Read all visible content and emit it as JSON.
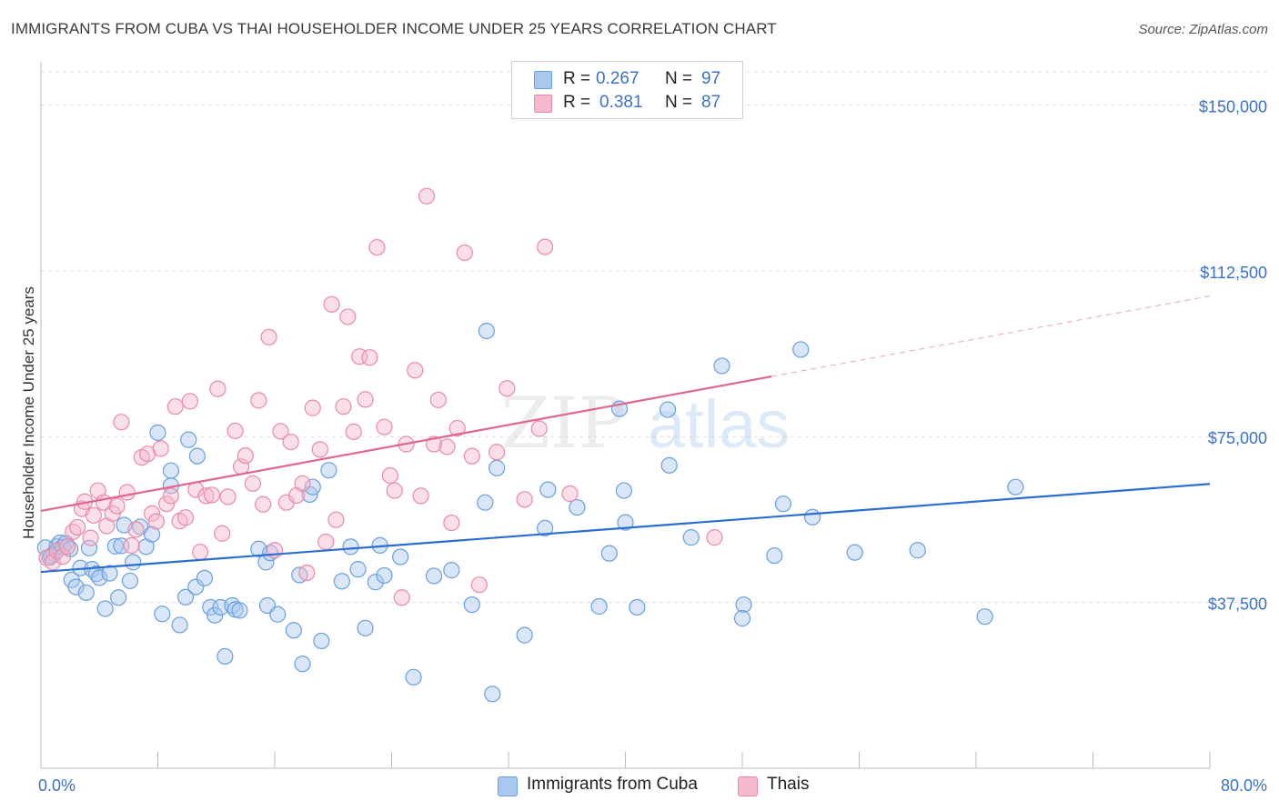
{
  "header": {
    "title": "IMMIGRANTS FROM CUBA VS THAI HOUSEHOLDER INCOME UNDER 25 YEARS CORRELATION CHART",
    "source": "Source: ZipAtlas.com"
  },
  "legend": {
    "rows": [
      {
        "r_label": "R =",
        "r_value": "0.267",
        "n_label": "N =",
        "n_value": "97"
      },
      {
        "r_label": "R =",
        "r_value": "0.381",
        "n_label": "N =",
        "n_value": "87"
      }
    ]
  },
  "bottom_legend": {
    "items": [
      {
        "label": "Immigrants from Cuba"
      },
      {
        "label": "Thais"
      }
    ]
  },
  "watermark": {
    "zip": "ZIP",
    "atlas": "atlas"
  },
  "colors": {
    "cuba_fill": "#a8c8f0",
    "cuba_stroke": "#6a9fdc",
    "cuba_line": "#2a6fd0",
    "thai_fill": "#f5b8cc",
    "thai_stroke": "#e88aa8",
    "thai_line": "#e0668e",
    "tick_text": "#3a72c4"
  },
  "chart_data": {
    "type": "scatter",
    "title": "IMMIGRANTS FROM CUBA VS THAI HOUSEHOLDER INCOME UNDER 25 YEARS CORRELATION CHART",
    "xlabel": "",
    "ylabel": "Householder Income Under 25 years",
    "xlim": [
      0,
      80
    ],
    "ylim": [
      0,
      157500
    ],
    "x_tick_labels": [
      "0.0%",
      "80.0%"
    ],
    "y_ticks": [
      37500,
      75000,
      112500,
      150000
    ],
    "y_tick_labels": [
      "$37,500",
      "$75,000",
      "$112,500",
      "$150,000"
    ],
    "grid": true,
    "legend_position": "top-center",
    "series": [
      {
        "name": "Immigrants from Cuba",
        "r": 0.267,
        "n": 97,
        "trend": {
          "x": [
            0,
            80
          ],
          "y": [
            44400,
            64300
          ]
        },
        "points": [
          [
            0.3,
            49900
          ],
          [
            0.6,
            47700
          ],
          [
            0.9,
            48500
          ],
          [
            1.1,
            50200
          ],
          [
            1.3,
            51000
          ],
          [
            1.5,
            50000
          ],
          [
            1.7,
            50900
          ],
          [
            2.0,
            49600
          ],
          [
            2.1,
            42600
          ],
          [
            2.4,
            41000
          ],
          [
            2.7,
            45300
          ],
          [
            3.1,
            39700
          ],
          [
            3.3,
            49800
          ],
          [
            3.5,
            45000
          ],
          [
            3.8,
            44000
          ],
          [
            4.0,
            43100
          ],
          [
            4.4,
            36100
          ],
          [
            4.7,
            44100
          ],
          [
            5.1,
            50200
          ],
          [
            5.3,
            38600
          ],
          [
            5.5,
            50300
          ],
          [
            5.7,
            55000
          ],
          [
            6.1,
            42400
          ],
          [
            6.3,
            46600
          ],
          [
            6.8,
            54600
          ],
          [
            7.2,
            50100
          ],
          [
            7.6,
            52900
          ],
          [
            8.0,
            75900
          ],
          [
            8.3,
            34900
          ],
          [
            8.9,
            63900
          ],
          [
            8.9,
            67300
          ],
          [
            9.5,
            32400
          ],
          [
            9.9,
            38700
          ],
          [
            10.1,
            74300
          ],
          [
            10.6,
            41000
          ],
          [
            10.7,
            70600
          ],
          [
            11.2,
            43000
          ],
          [
            11.6,
            36400
          ],
          [
            11.9,
            34600
          ],
          [
            12.3,
            36400
          ],
          [
            12.6,
            25300
          ],
          [
            13.1,
            36800
          ],
          [
            13.3,
            35900
          ],
          [
            13.6,
            35700
          ],
          [
            14.9,
            49600
          ],
          [
            15.4,
            46600
          ],
          [
            15.5,
            36800
          ],
          [
            15.7,
            48700
          ],
          [
            16.2,
            34800
          ],
          [
            17.3,
            31200
          ],
          [
            17.7,
            43700
          ],
          [
            17.9,
            23600
          ],
          [
            18.4,
            61900
          ],
          [
            18.6,
            63600
          ],
          [
            19.2,
            28800
          ],
          [
            19.7,
            67400
          ],
          [
            20.6,
            42300
          ],
          [
            21.2,
            50100
          ],
          [
            21.7,
            45000
          ],
          [
            22.2,
            31700
          ],
          [
            22.9,
            42100
          ],
          [
            23.2,
            50400
          ],
          [
            23.5,
            43600
          ],
          [
            24.6,
            47800
          ],
          [
            25.5,
            20600
          ],
          [
            26.9,
            43500
          ],
          [
            28.1,
            44800
          ],
          [
            29.5,
            37000
          ],
          [
            30.4,
            60100
          ],
          [
            30.9,
            16800
          ],
          [
            31.2,
            67900
          ],
          [
            33.1,
            30100
          ],
          [
            34.5,
            54300
          ],
          [
            34.7,
            63000
          ],
          [
            36.7,
            59000
          ],
          [
            38.2,
            36600
          ],
          [
            38.9,
            48600
          ],
          [
            39.6,
            81300
          ],
          [
            39.9,
            62800
          ],
          [
            40.0,
            55600
          ],
          [
            40.8,
            36400
          ],
          [
            42.9,
            81100
          ],
          [
            43.0,
            68500
          ],
          [
            44.5,
            52200
          ],
          [
            46.6,
            91000
          ],
          [
            48.1,
            37000
          ],
          [
            48.0,
            33900
          ],
          [
            50.2,
            48100
          ],
          [
            50.8,
            59800
          ],
          [
            52.8,
            56800
          ],
          [
            52.0,
            94700
          ],
          [
            55.7,
            48800
          ],
          [
            60.0,
            49300
          ],
          [
            64.6,
            34300
          ],
          [
            66.7,
            63600
          ],
          [
            0.7,
            48000
          ],
          [
            30.5,
            98900
          ]
        ]
      },
      {
        "name": "Thais",
        "r": 0.381,
        "n": 87,
        "trend": {
          "x": [
            0,
            50
          ],
          "y": [
            58200,
            88600
          ]
        },
        "trend_dashed": {
          "x": [
            50,
            80
          ],
          "y": [
            88600,
            106800
          ]
        },
        "points": [
          [
            0.4,
            47600
          ],
          [
            0.8,
            46600
          ],
          [
            1.1,
            49200
          ],
          [
            1.5,
            47900
          ],
          [
            1.8,
            50100
          ],
          [
            2.2,
            53500
          ],
          [
            2.5,
            54500
          ],
          [
            2.8,
            58700
          ],
          [
            3.0,
            60300
          ],
          [
            3.4,
            52100
          ],
          [
            3.6,
            57200
          ],
          [
            3.9,
            62800
          ],
          [
            4.3,
            60100
          ],
          [
            4.5,
            54800
          ],
          [
            4.9,
            57600
          ],
          [
            5.2,
            59300
          ],
          [
            5.5,
            78300
          ],
          [
            5.9,
            62400
          ],
          [
            6.2,
            50400
          ],
          [
            6.5,
            54000
          ],
          [
            6.9,
            70300
          ],
          [
            7.3,
            71100
          ],
          [
            7.6,
            57600
          ],
          [
            7.9,
            55800
          ],
          [
            8.2,
            72300
          ],
          [
            8.6,
            59800
          ],
          [
            8.9,
            61600
          ],
          [
            9.2,
            81800
          ],
          [
            9.5,
            55900
          ],
          [
            9.9,
            56700
          ],
          [
            10.2,
            83000
          ],
          [
            10.6,
            63000
          ],
          [
            10.9,
            48900
          ],
          [
            11.3,
            61600
          ],
          [
            11.7,
            61800
          ],
          [
            12.1,
            85800
          ],
          [
            12.4,
            53100
          ],
          [
            12.8,
            61400
          ],
          [
            13.3,
            76300
          ],
          [
            13.7,
            68200
          ],
          [
            14.0,
            70700
          ],
          [
            14.5,
            64400
          ],
          [
            14.9,
            83200
          ],
          [
            15.2,
            59700
          ],
          [
            15.6,
            97500
          ],
          [
            16.0,
            49300
          ],
          [
            16.4,
            76200
          ],
          [
            16.8,
            60100
          ],
          [
            17.1,
            73800
          ],
          [
            17.5,
            61700
          ],
          [
            17.9,
            64400
          ],
          [
            18.2,
            44200
          ],
          [
            18.6,
            81500
          ],
          [
            19.1,
            72100
          ],
          [
            19.5,
            51200
          ],
          [
            19.9,
            104900
          ],
          [
            20.2,
            56200
          ],
          [
            20.7,
            81800
          ],
          [
            21.0,
            102100
          ],
          [
            21.4,
            76100
          ],
          [
            21.8,
            93100
          ],
          [
            22.2,
            83400
          ],
          [
            22.5,
            92900
          ],
          [
            23.0,
            117800
          ],
          [
            23.5,
            77200
          ],
          [
            23.9,
            66200
          ],
          [
            24.2,
            62800
          ],
          [
            24.7,
            38600
          ],
          [
            25.0,
            73300
          ],
          [
            25.6,
            90000
          ],
          [
            26.0,
            61600
          ],
          [
            26.4,
            129400
          ],
          [
            26.9,
            73300
          ],
          [
            27.2,
            83300
          ],
          [
            27.8,
            72700
          ],
          [
            28.1,
            55500
          ],
          [
            28.5,
            76900
          ],
          [
            29.0,
            116600
          ],
          [
            29.5,
            70600
          ],
          [
            30.0,
            41500
          ],
          [
            31.2,
            71500
          ],
          [
            31.9,
            85900
          ],
          [
            33.1,
            60800
          ],
          [
            34.1,
            76800
          ],
          [
            34.5,
            117900
          ],
          [
            36.2,
            62100
          ],
          [
            46.1,
            52200
          ]
        ]
      }
    ]
  }
}
